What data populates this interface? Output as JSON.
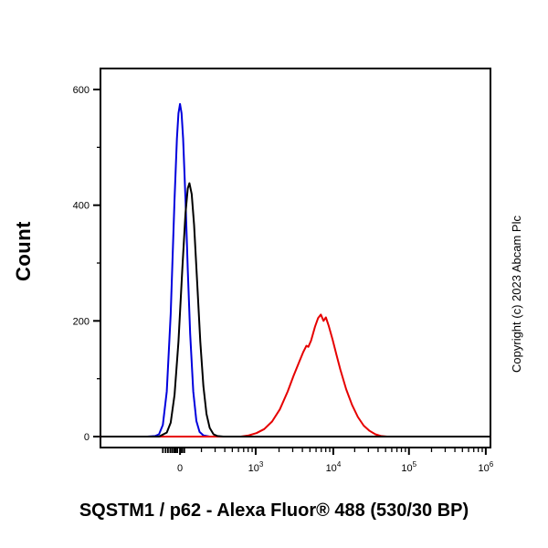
{
  "figure": {
    "ylabel": "Count",
    "copyright": "Copyright (c) 2023 Abcam Plc",
    "title": "SQSTM1 / p62 - Alexa Fluor® 488 (530/30 BP)"
  },
  "chart_data": {
    "type": "line",
    "subtype": "flow-cytometry-histogram-overlay",
    "title": "SQSTM1 / p62 - Alexa Fluor® 488 (530/30 BP)",
    "ylabel": "Count",
    "xlabel": "SQSTM1 / p62 - Alexa Fluor® 488 (530/30 BP)",
    "legend_position": "none",
    "grid": false,
    "y_axis": {
      "range_displayed": [
        0,
        636
      ],
      "major_ticks": [
        0,
        200,
        400,
        600
      ],
      "minor_ticks": [
        100,
        300,
        500
      ]
    },
    "x_axis": {
      "scale": "biexponential",
      "major_ticks": [
        {
          "label": "0",
          "exp": "",
          "pos": 0.204
        },
        {
          "label": "10",
          "exp": "3",
          "pos": 0.398
        },
        {
          "label": "10",
          "exp": "4",
          "pos": 0.597
        },
        {
          "label": "10",
          "exp": "5",
          "pos": 0.791
        },
        {
          "label": "10",
          "exp": "6",
          "pos": 0.988
        }
      ],
      "near_zero_minor_ticks": [
        0.16,
        0.167,
        0.173,
        0.179,
        0.184,
        0.189,
        0.193,
        0.197,
        0.206,
        0.21,
        0.215
      ]
    },
    "series": [
      {
        "name": "blue-peak",
        "color": "#0000dd",
        "peak_count": 575,
        "points": [
          [
            0.0,
            0
          ],
          [
            0.12,
            0
          ],
          [
            0.14,
            1
          ],
          [
            0.15,
            4
          ],
          [
            0.16,
            20
          ],
          [
            0.17,
            78
          ],
          [
            0.18,
            212
          ],
          [
            0.19,
            410
          ],
          [
            0.196,
            515
          ],
          [
            0.2,
            559
          ],
          [
            0.204,
            575
          ],
          [
            0.208,
            559
          ],
          [
            0.212,
            515
          ],
          [
            0.218,
            410
          ],
          [
            0.224,
            288
          ],
          [
            0.23,
            178
          ],
          [
            0.238,
            78
          ],
          [
            0.246,
            27
          ],
          [
            0.254,
            8
          ],
          [
            0.264,
            2
          ],
          [
            0.28,
            0
          ],
          [
            1.0,
            0
          ]
        ]
      },
      {
        "name": "red-peak",
        "color": "#e60000",
        "peak_count": 211,
        "points": [
          [
            0.0,
            0
          ],
          [
            0.36,
            0
          ],
          [
            0.38,
            2
          ],
          [
            0.4,
            6
          ],
          [
            0.42,
            13
          ],
          [
            0.44,
            26
          ],
          [
            0.46,
            47
          ],
          [
            0.48,
            78
          ],
          [
            0.495,
            105
          ],
          [
            0.51,
            130
          ],
          [
            0.52,
            146
          ],
          [
            0.528,
            157
          ],
          [
            0.533,
            155
          ],
          [
            0.54,
            166
          ],
          [
            0.55,
            190
          ],
          [
            0.558,
            205
          ],
          [
            0.565,
            211
          ],
          [
            0.572,
            200
          ],
          [
            0.578,
            206
          ],
          [
            0.585,
            192
          ],
          [
            0.595,
            168
          ],
          [
            0.605,
            142
          ],
          [
            0.615,
            116
          ],
          [
            0.63,
            82
          ],
          [
            0.645,
            55
          ],
          [
            0.66,
            34
          ],
          [
            0.675,
            19
          ],
          [
            0.69,
            10
          ],
          [
            0.705,
            4
          ],
          [
            0.72,
            1
          ],
          [
            0.735,
            0
          ],
          [
            1.0,
            0
          ]
        ]
      },
      {
        "name": "black-peak",
        "color": "#000000",
        "peak_count": 438,
        "points": [
          [
            0.0,
            0
          ],
          [
            0.15,
            0
          ],
          [
            0.17,
            7
          ],
          [
            0.18,
            24
          ],
          [
            0.19,
            72
          ],
          [
            0.2,
            164
          ],
          [
            0.21,
            292
          ],
          [
            0.218,
            386
          ],
          [
            0.224,
            429
          ],
          [
            0.228,
            438
          ],
          [
            0.234,
            419
          ],
          [
            0.24,
            366
          ],
          [
            0.248,
            266
          ],
          [
            0.256,
            164
          ],
          [
            0.264,
            87
          ],
          [
            0.272,
            39
          ],
          [
            0.28,
            15
          ],
          [
            0.29,
            4
          ],
          [
            0.3,
            1
          ],
          [
            0.315,
            0
          ],
          [
            1.0,
            0
          ]
        ]
      }
    ]
  }
}
